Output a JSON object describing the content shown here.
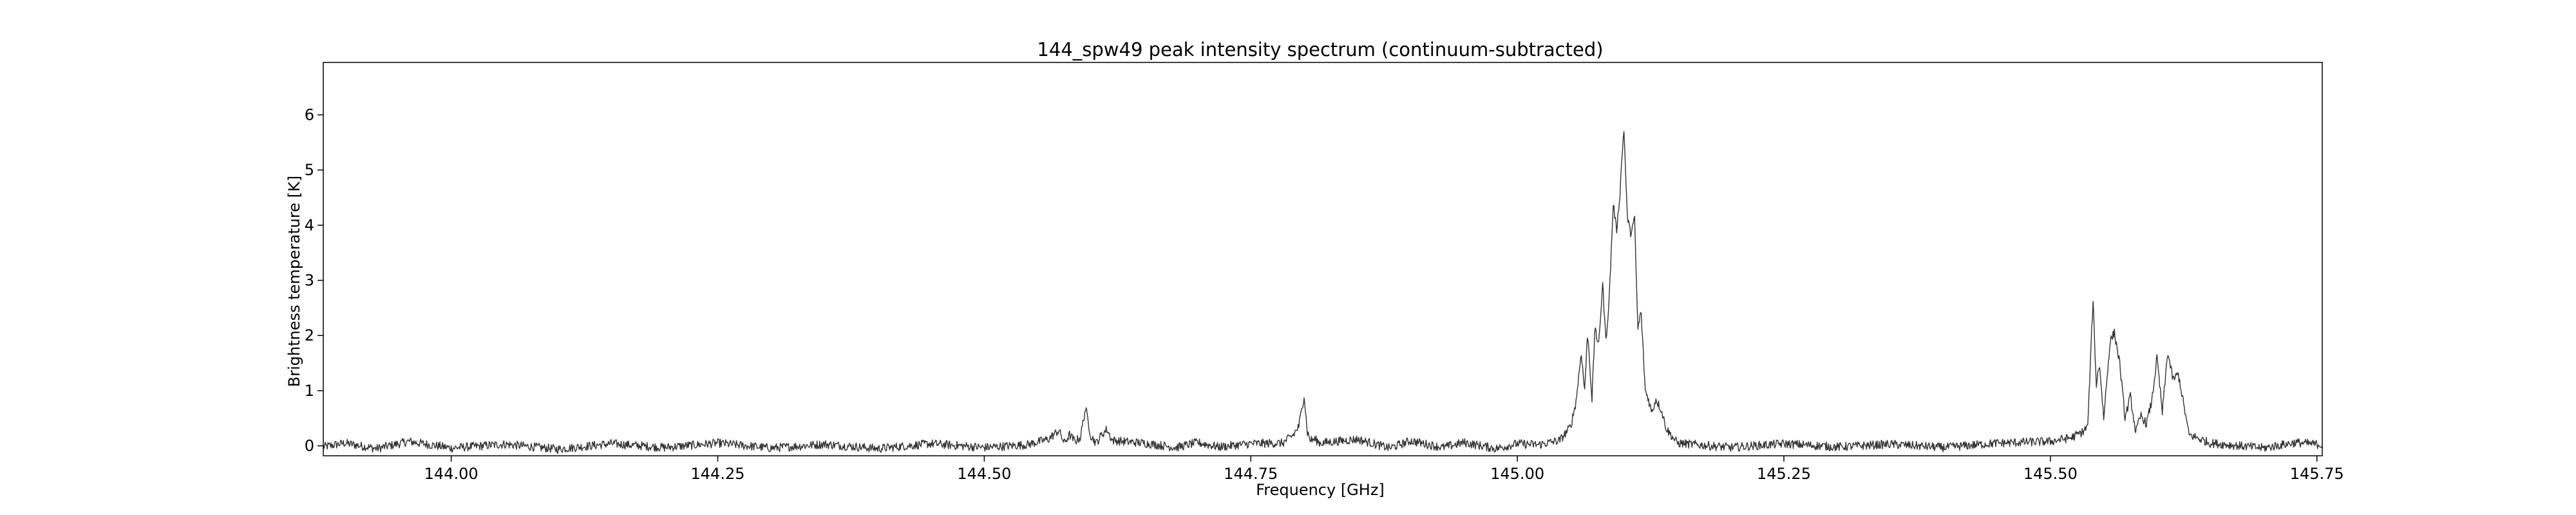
{
  "chart_data": {
    "type": "line",
    "title": "144_spw49 peak intensity spectrum (continuum-subtracted)",
    "xlabel": "Frequency [GHz]",
    "ylabel": "Brightness temperature [K]",
    "xlim": [
      143.88,
      145.755
    ],
    "ylim": [
      -0.18,
      6.95
    ],
    "xticks": [
      144.0,
      144.25,
      144.5,
      144.75,
      145.0,
      145.25,
      145.5,
      145.75
    ],
    "xtick_labels": [
      "144.00",
      "144.25",
      "144.50",
      "144.75",
      "145.00",
      "145.25",
      "145.50",
      "145.75"
    ],
    "yticks": [
      0,
      1,
      2,
      3,
      4,
      5,
      6
    ],
    "ytick_labels": [
      "0",
      "1",
      "2",
      "3",
      "4",
      "5",
      "6"
    ],
    "grid": false,
    "line_color": "#333333",
    "series": [
      {
        "x": [
          143.88,
          143.9,
          143.93,
          143.96,
          144.0,
          144.05,
          144.1,
          144.15,
          144.2,
          144.25,
          144.3,
          144.35,
          144.4,
          144.45,
          144.5,
          144.54,
          144.56,
          144.57,
          144.575,
          144.58,
          144.585,
          144.59,
          144.595,
          144.6,
          144.605,
          144.61,
          144.615,
          144.62,
          144.63,
          144.65,
          144.68,
          144.7,
          144.72,
          144.75,
          144.78,
          144.79,
          144.795,
          144.8,
          144.803,
          144.806,
          144.81,
          144.815,
          144.83,
          144.85,
          144.88,
          144.9,
          144.93,
          144.95,
          144.98,
          145.0,
          145.02,
          145.04,
          145.05,
          145.055,
          145.06,
          145.063,
          145.066,
          145.07,
          145.073,
          145.076,
          145.08,
          145.083,
          145.086,
          145.09,
          145.093,
          145.096,
          145.098,
          145.1,
          145.103,
          145.106,
          145.11,
          145.113,
          145.116,
          145.12,
          145.123,
          145.126,
          145.13,
          145.135,
          145.14,
          145.15,
          145.2,
          145.25,
          145.3,
          145.35,
          145.4,
          145.45,
          145.5,
          145.52,
          145.53,
          145.535,
          145.54,
          145.543,
          145.546,
          145.55,
          145.553,
          145.556,
          145.56,
          145.565,
          145.57,
          145.575,
          145.58,
          145.585,
          145.59,
          145.595,
          145.6,
          145.605,
          145.61,
          145.615,
          145.62,
          145.63,
          145.65,
          145.7,
          145.73,
          145.755
        ],
        "y": [
          -0.02,
          0.05,
          -0.05,
          0.08,
          -0.04,
          0.03,
          -0.06,
          0.04,
          -0.03,
          0.05,
          -0.04,
          0.03,
          -0.05,
          0.04,
          -0.03,
          0.02,
          0.12,
          0.28,
          0.05,
          0.2,
          0.08,
          0.15,
          0.68,
          0.18,
          0.05,
          0.2,
          0.3,
          0.1,
          0.08,
          0.05,
          -0.03,
          0.06,
          -0.02,
          0.04,
          0.05,
          0.2,
          0.35,
          0.92,
          0.25,
          0.1,
          0.12,
          0.05,
          0.08,
          0.12,
          -0.04,
          0.09,
          -0.03,
          0.06,
          -0.05,
          0.04,
          0.02,
          0.1,
          0.35,
          0.8,
          1.7,
          1.0,
          2.05,
          0.85,
          2.2,
          1.75,
          2.95,
          1.9,
          2.6,
          4.4,
          3.9,
          4.5,
          5.2,
          5.75,
          4.2,
          3.85,
          4.1,
          2.1,
          2.45,
          1.0,
          0.85,
          0.6,
          0.85,
          0.65,
          0.3,
          0.05,
          -0.03,
          0.04,
          -0.02,
          0.03,
          -0.03,
          0.05,
          0.08,
          0.15,
          0.25,
          0.35,
          2.65,
          1.1,
          1.5,
          0.5,
          1.2,
          1.9,
          2.05,
          1.5,
          0.5,
          0.9,
          0.25,
          0.55,
          0.4,
          0.8,
          1.6,
          0.6,
          1.7,
          1.2,
          1.3,
          0.2,
          0.05,
          -0.04,
          0.06,
          0.02
        ]
      }
    ]
  }
}
